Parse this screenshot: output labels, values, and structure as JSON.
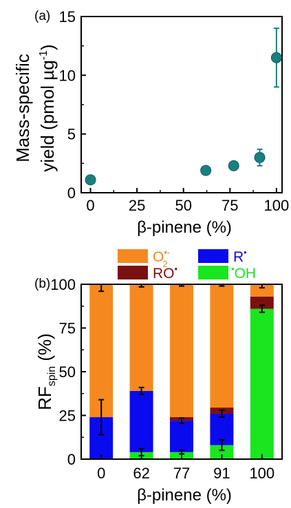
{
  "chart_data": [
    {
      "type": "scatter",
      "panel_label": "(a)",
      "xlabel": "β-pinene (%)",
      "ylabel_line1": "Mass-specific",
      "ylabel_line2": "yield (pmol µg",
      "ylabel_sup": "-1",
      "ylabel_close": ")",
      "xlim": [
        -5,
        103
      ],
      "ylim": [
        0,
        15
      ],
      "xticks": [
        0,
        25,
        50,
        75,
        100
      ],
      "yticks": [
        0,
        5,
        10,
        15
      ],
      "xtick_labels": [
        "0",
        "25",
        "50",
        "75",
        "100"
      ],
      "ytick_labels": [
        "0",
        "5",
        "10",
        "15"
      ],
      "marker_color": "#1a7f7f",
      "points": [
        {
          "x": 0,
          "y": 1.1,
          "err": 0.3
        },
        {
          "x": 62,
          "y": 1.9,
          "err": 0.2
        },
        {
          "x": 77,
          "y": 2.3,
          "err": 0.2
        },
        {
          "x": 91,
          "y": 3.0,
          "err": 0.7
        },
        {
          "x": 100,
          "y": 11.5,
          "err": 2.5
        }
      ]
    },
    {
      "type": "bar",
      "stacked": true,
      "panel_label": "(b)",
      "xlabel": "β-pinene (%)",
      "ylabel_main": "RF",
      "ylabel_sub": "spin",
      "ylabel_rest": " (%)",
      "categories": [
        "0",
        "62",
        "77",
        "91",
        "100"
      ],
      "ylim": [
        0,
        100
      ],
      "yticks": [
        0,
        25,
        50,
        75,
        100
      ],
      "ytick_labels": [
        "0",
        "25",
        "50",
        "75",
        "100"
      ],
      "legend": [
        {
          "key": "o2",
          "base": "O",
          "sub": "2",
          "sup": "•-",
          "color": "#f5891f"
        },
        {
          "key": "ro",
          "base": "RO",
          "sup": "•",
          "color": "#7b1010"
        },
        {
          "key": "r",
          "base": "R",
          "sup": "•",
          "color": "#0a0aee"
        },
        {
          "key": "oh",
          "pre_sup": "•",
          "base": "OH",
          "color": "#19e61f"
        }
      ],
      "series": [
        {
          "key": "oh",
          "color": "#19e61f",
          "values": [
            0,
            4,
            4,
            8,
            86
          ],
          "err": [
            0,
            2,
            1,
            3,
            2
          ]
        },
        {
          "key": "r",
          "color": "#0a0aee",
          "values": [
            24,
            35,
            18,
            18,
            0
          ],
          "err": [
            10,
            2,
            1.5,
            2,
            0
          ]
        },
        {
          "key": "ro",
          "color": "#7b1010",
          "values": [
            0,
            0,
            2,
            3.5,
            7
          ],
          "err": [
            0,
            0,
            0,
            0,
            0
          ]
        },
        {
          "key": "o2",
          "color": "#f5891f",
          "values": [
            76,
            61,
            76,
            70.5,
            7
          ],
          "err": [
            4,
            1.5,
            1,
            1,
            2
          ]
        }
      ]
    }
  ]
}
